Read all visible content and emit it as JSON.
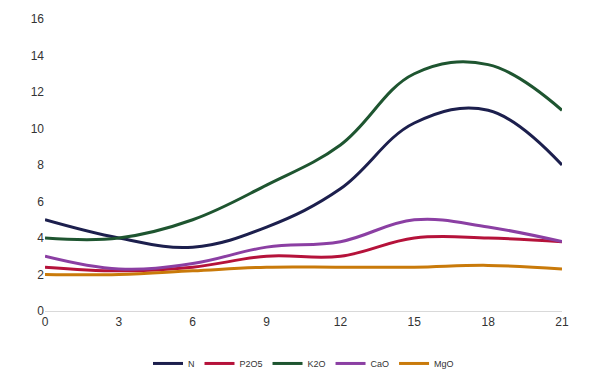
{
  "chart_data": {
    "type": "line",
    "line_style": "smooth",
    "grid": false,
    "legend": "bottom",
    "x": [
      0,
      3,
      6,
      9,
      12,
      15,
      18,
      21
    ],
    "xlim": [
      0,
      21
    ],
    "xticks": [
      0,
      3,
      6,
      9,
      12,
      15,
      18,
      21
    ],
    "ylim": [
      0,
      16
    ],
    "yticks": [
      0,
      2,
      4,
      6,
      8,
      10,
      12,
      14,
      16
    ],
    "series": [
      {
        "name": "N",
        "color": "#1c1f4d",
        "values": [
          5,
          4,
          3.5,
          4.6,
          6.7,
          10.3,
          11,
          8
        ]
      },
      {
        "name": "P2O5",
        "color": "#b5123a",
        "values": [
          2.4,
          2.2,
          2.4,
          3,
          3,
          4,
          4,
          3.8
        ]
      },
      {
        "name": "K2O",
        "color": "#1e5530",
        "values": [
          4,
          4,
          5,
          6.9,
          9.1,
          13,
          13.5,
          11
        ]
      },
      {
        "name": "CaO",
        "color": "#8b3fa3",
        "values": [
          3,
          2.3,
          2.6,
          3.5,
          3.8,
          5,
          4.6,
          3.8
        ]
      },
      {
        "name": "MgO",
        "color": "#c97a0a",
        "values": [
          2,
          2,
          2.2,
          2.4,
          2.4,
          2.4,
          2.5,
          2.3
        ]
      }
    ]
  }
}
